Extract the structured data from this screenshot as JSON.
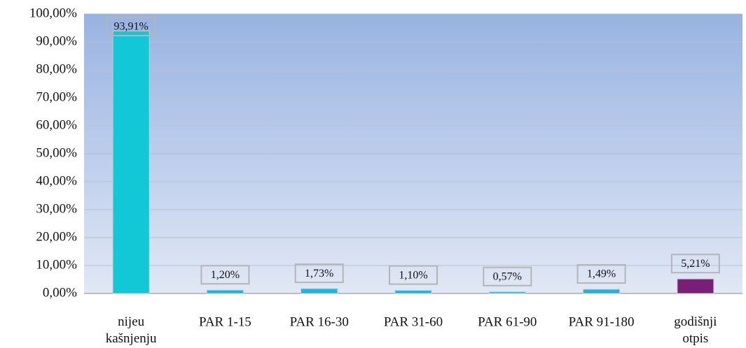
{
  "chart_data": {
    "type": "bar",
    "categories": [
      "nijeu kašnjenju",
      "PAR 1-15",
      "PAR 16-30",
      "PAR 31-60",
      "PAR 61-90",
      "PAR 91-180",
      "godišnji otpis"
    ],
    "values": [
      93.91,
      1.2,
      1.73,
      1.1,
      0.57,
      1.49,
      5.21
    ],
    "value_labels": [
      "93,91%",
      "1,20%",
      "1,73%",
      "1,10%",
      "0,57%",
      "1,49%",
      "5,21%"
    ],
    "colors": [
      "#12c7d6",
      "#1bb3e0",
      "#1bb3e0",
      "#1bb3e0",
      "#1bb3e0",
      "#1bb3e0",
      "#7a1f78"
    ],
    "ylim": [
      0,
      100
    ],
    "yticks": [
      {
        "value": 0,
        "label": "0,00%"
      },
      {
        "value": 10,
        "label": "10,00%"
      },
      {
        "value": 20,
        "label": "20,00%"
      },
      {
        "value": 30,
        "label": "30,00%"
      },
      {
        "value": 40,
        "label": "40,00%"
      },
      {
        "value": 50,
        "label": "50,00%"
      },
      {
        "value": 60,
        "label": "60,00%"
      },
      {
        "value": 70,
        "label": "70,00%"
      },
      {
        "value": 80,
        "label": "80,00%"
      },
      {
        "value": 90,
        "label": "90,00%"
      },
      {
        "value": 100,
        "label": "100,00%"
      }
    ],
    "grid": true
  }
}
